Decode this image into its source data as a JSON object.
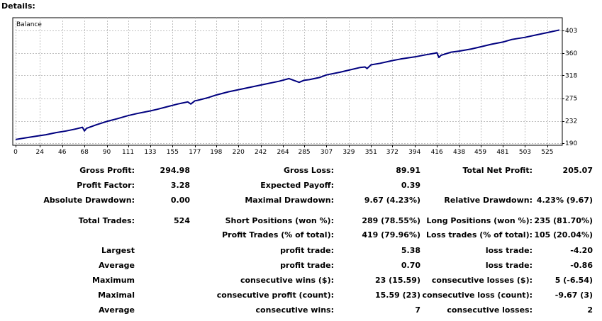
{
  "header": {
    "title": "Details:"
  },
  "chart_data": {
    "type": "line",
    "title": "Balance",
    "xlabel": "",
    "ylabel": "",
    "x_ticks": [
      0,
      24,
      46,
      68,
      90,
      111,
      133,
      155,
      177,
      198,
      220,
      242,
      264,
      285,
      307,
      329,
      351,
      372,
      394,
      416,
      438,
      459,
      481,
      503,
      525
    ],
    "y_ticks": [
      190,
      232,
      275,
      318,
      360,
      403
    ],
    "xlim": [
      0,
      537
    ],
    "ylim": [
      190,
      403
    ],
    "grid": true,
    "series": [
      {
        "color": "#00007f",
        "x": [
          0,
          10,
          20,
          30,
          40,
          50,
          60,
          66,
          68,
          70,
          80,
          90,
          100,
          111,
          120,
          133,
          140,
          150,
          160,
          170,
          173,
          177,
          180,
          190,
          198,
          210,
          220,
          230,
          240,
          250,
          260,
          270,
          280,
          285,
          290,
          300,
          307,
          320,
          329,
          340,
          345,
          347,
          351,
          360,
          372,
          380,
          394,
          405,
          414,
          416,
          418,
          420,
          430,
          438,
          450,
          459,
          470,
          481,
          490,
          503,
          515,
          525,
          537
        ],
        "y": [
          197,
          200,
          203,
          206,
          210,
          213,
          217,
          220,
          213,
          218,
          225,
          231,
          236,
          242,
          246,
          251,
          254,
          259,
          264,
          268,
          264,
          270,
          271,
          276,
          281,
          287,
          291,
          295,
          299,
          303,
          307,
          312,
          305,
          309,
          310,
          314,
          319,
          324,
          328,
          333,
          334,
          331,
          338,
          341,
          346,
          349,
          353,
          357,
          360,
          361,
          352,
          356,
          362,
          364,
          368,
          372,
          377,
          381,
          386,
          390,
          395,
          399,
          404
        ]
      }
    ]
  },
  "stats": {
    "gross_profit": {
      "label": "Gross Profit:",
      "value": "294.98"
    },
    "gross_loss": {
      "label": "Gross Loss:",
      "value": "89.91"
    },
    "total_net_profit": {
      "label": "Total Net Profit:",
      "value": "205.07"
    },
    "profit_factor": {
      "label": "Profit Factor:",
      "value": "3.28"
    },
    "expected_payoff": {
      "label": "Expected Payoff:",
      "value": "0.39"
    },
    "absolute_drawdown": {
      "label": "Absolute Drawdown:",
      "value": "0.00"
    },
    "maximal_drawdown": {
      "label": "Maximal Drawdown:",
      "value": "9.67 (4.23%)"
    },
    "relative_drawdown": {
      "label": "Relative Drawdown:",
      "value": "4.23% (9.67)"
    },
    "total_trades": {
      "label": "Total Trades:",
      "value": "524"
    },
    "short_positions": {
      "label": "Short Positions (won %):",
      "value": "289 (78.55%)"
    },
    "long_positions": {
      "label": "Long Positions (won %):",
      "value": "235 (81.70%)"
    },
    "profit_trades": {
      "label": "Profit Trades (% of total):",
      "value": "419 (79.96%)"
    },
    "loss_trades": {
      "label": "Loss trades (% of total):",
      "value": "105 (20.04%)"
    },
    "largest": {
      "label": "Largest",
      "profit_label": "profit trade:",
      "profit_value": "5.38",
      "loss_label": "loss trade:",
      "loss_value": "-4.20"
    },
    "average": {
      "label": "Average",
      "profit_label": "profit trade:",
      "profit_value": "0.70",
      "loss_label": "loss trade:",
      "loss_value": "-0.86"
    },
    "maximum": {
      "label": "Maximum",
      "profit_label": "consecutive wins ($):",
      "profit_value": "23 (15.59)",
      "loss_label": "consecutive losses ($):",
      "loss_value": "5 (-6.54)"
    },
    "maximal": {
      "label": "Maximal",
      "profit_label": "consecutive profit (count):",
      "profit_value": "15.59 (23)",
      "loss_label": "consecutive loss (count):",
      "loss_value": "-9.67 (3)"
    },
    "average_consecutive": {
      "label": "Average",
      "profit_label": "consecutive wins:",
      "profit_value": "7",
      "loss_label": "consecutive losses:",
      "loss_value": "2"
    }
  }
}
